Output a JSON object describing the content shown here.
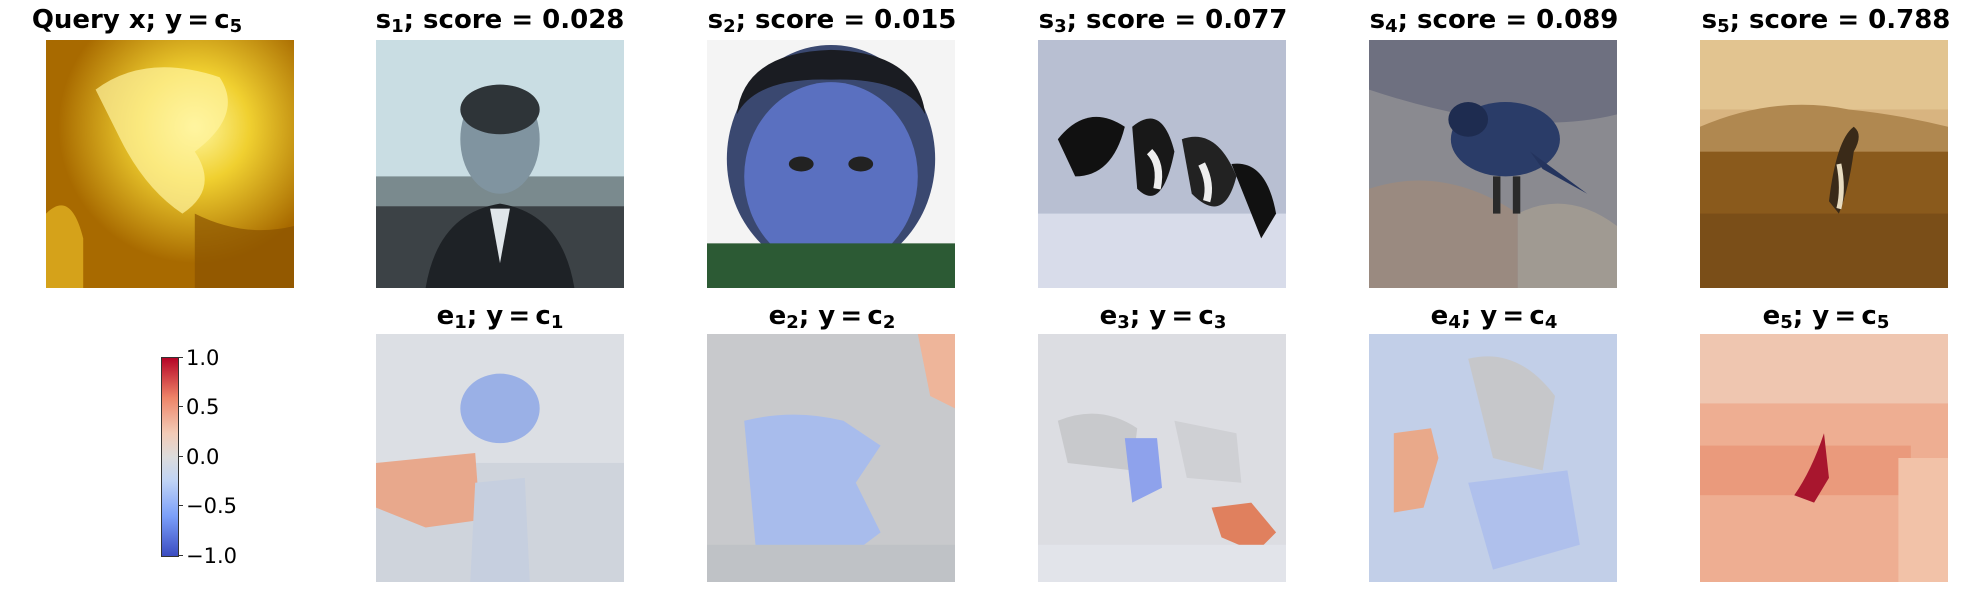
{
  "query": {
    "title_main": "Query x; y = c",
    "title_sub": "5",
    "image": "yellow-abstract-query-image"
  },
  "samples": [
    {
      "title_a": "s",
      "sub": "1",
      "title_b": "; score = 0.028",
      "image": "man-portrait"
    },
    {
      "title_a": "s",
      "sub": "2",
      "title_b": "; score = 0.015",
      "image": "child-face-closeup"
    },
    {
      "title_a": "s",
      "sub": "3",
      "title_b": "; score = 0.077",
      "image": "black-white-animal"
    },
    {
      "title_a": "s",
      "sub": "4",
      "title_b": "; score = 0.089",
      "image": "blue-bird-on-rocks"
    },
    {
      "title_a": "s",
      "sub": "5",
      "title_b": "; score = 0.788",
      "image": "bird-on-beach"
    }
  ],
  "explanations": [
    {
      "title_a": "e",
      "sub": "1",
      "title_b": "; y = c",
      "title_sub2": "1",
      "image": "attribution-map"
    },
    {
      "title_a": "e",
      "sub": "2",
      "title_b": "; y = c",
      "title_sub2": "2",
      "image": "attribution-map"
    },
    {
      "title_a": "e",
      "sub": "3",
      "title_b": "; y = c",
      "title_sub2": "3",
      "image": "attribution-map"
    },
    {
      "title_a": "e",
      "sub": "4",
      "title_b": "; y = c",
      "title_sub2": "4",
      "image": "attribution-map"
    },
    {
      "title_a": "e",
      "sub": "5",
      "title_b": "; y = c",
      "title_sub2": "5",
      "image": "attribution-map"
    }
  ],
  "colorbar": {
    "ticks": [
      "1.0",
      "0.5",
      "0.0",
      "−0.5",
      "−1.0"
    ],
    "colormap": "coolwarm",
    "range": [
      -1.0,
      1.0
    ]
  }
}
